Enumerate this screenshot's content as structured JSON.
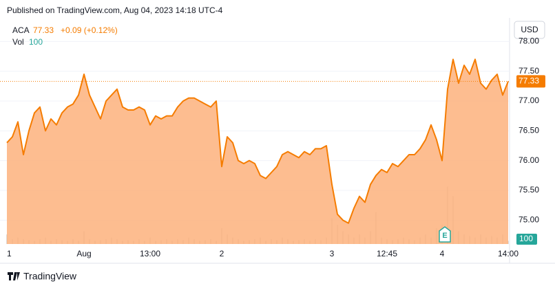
{
  "header": {
    "published": "Published on TradingView.com, Aug 04, 2023 14:18 UTC-4"
  },
  "footer": {
    "brand": "TradingView"
  },
  "chart_data": {
    "type": "area",
    "symbol": "ACA",
    "last": 77.33,
    "change": "+0.09 (+0.12%)",
    "currency": "USD",
    "earnings_marker": "E",
    "color": "#f57c00",
    "fill": "#fdb27c",
    "categories": [
      "1",
      null,
      null,
      null,
      null,
      null,
      null,
      null,
      null,
      null,
      null,
      null,
      null,
      null,
      "Aug",
      null,
      null,
      null,
      null,
      null,
      null,
      null,
      null,
      null,
      null,
      null,
      "13:00",
      null,
      null,
      null,
      null,
      null,
      null,
      null,
      null,
      null,
      null,
      null,
      null,
      "2",
      null,
      null,
      null,
      null,
      null,
      null,
      null,
      null,
      null,
      null,
      null,
      null,
      null,
      null,
      null,
      null,
      null,
      null,
      null,
      "3",
      null,
      null,
      null,
      null,
      null,
      null,
      null,
      null,
      null,
      "12:45",
      null,
      null,
      null,
      null,
      null,
      null,
      null,
      null,
      null,
      "4",
      null,
      null,
      null,
      null,
      null,
      null,
      null,
      null,
      null,
      null,
      null,
      "14:00"
    ],
    "values": [
      76.3,
      76.4,
      76.65,
      76.1,
      76.5,
      76.8,
      76.9,
      76.5,
      76.7,
      76.6,
      76.8,
      76.9,
      76.95,
      77.1,
      77.45,
      77.1,
      76.9,
      76.7,
      77.0,
      77.1,
      77.2,
      76.9,
      76.85,
      76.85,
      76.9,
      76.85,
      76.6,
      76.75,
      76.7,
      76.75,
      76.75,
      76.9,
      77.0,
      77.05,
      77.05,
      77.0,
      76.95,
      76.9,
      77.0,
      75.9,
      76.4,
      76.3,
      76.0,
      75.95,
      76.0,
      75.95,
      75.75,
      75.7,
      75.8,
      75.9,
      76.1,
      76.15,
      76.1,
      76.05,
      76.15,
      76.1,
      76.2,
      76.2,
      76.25,
      75.6,
      75.1,
      75.0,
      74.95,
      75.2,
      75.4,
      75.3,
      75.6,
      75.75,
      75.85,
      75.8,
      75.95,
      75.9,
      76.0,
      76.1,
      76.1,
      76.2,
      76.35,
      76.6,
      76.35,
      76.0,
      77.2,
      77.7,
      77.3,
      77.6,
      77.45,
      77.7,
      77.3,
      77.2,
      77.35,
      77.45,
      77.1,
      77.33
    ],
    "ylim": [
      74.6,
      78.35
    ],
    "yticks": [
      {
        "value": 75,
        "label": "75.00"
      },
      {
        "value": 75.5,
        "label": "75.50"
      },
      {
        "value": 76,
        "label": "76.00"
      },
      {
        "value": 76.5,
        "label": "76.50"
      },
      {
        "value": 77,
        "label": "77.00"
      },
      {
        "value": 77.5,
        "label": "77.50"
      },
      {
        "value": 78,
        "label": "78.00"
      }
    ],
    "grid": true,
    "volume": {
      "name": "Vol",
      "color": "#26a69a",
      "ylim": [
        0,
        7000
      ],
      "values": [
        300,
        150,
        200,
        150,
        120,
        100,
        150,
        200,
        100,
        150,
        120,
        100,
        150,
        100,
        400,
        150,
        100,
        120,
        150,
        200,
        150,
        100,
        120,
        100,
        150,
        100,
        200,
        100,
        120,
        150,
        100,
        150,
        120,
        200,
        150,
        100,
        120,
        150,
        100,
        500,
        300,
        200,
        150,
        100,
        120,
        150,
        200,
        100,
        150,
        120,
        200,
        150,
        100,
        120,
        150,
        100,
        150,
        120,
        200,
        800,
        600,
        400,
        300,
        200,
        300,
        200,
        400,
        1000,
        200,
        150,
        120,
        150,
        200,
        150,
        120,
        200,
        300,
        200,
        500,
        600,
        1800,
        1500,
        400,
        300,
        250,
        200,
        300,
        200,
        250,
        200,
        300,
        100
      ]
    }
  }
}
